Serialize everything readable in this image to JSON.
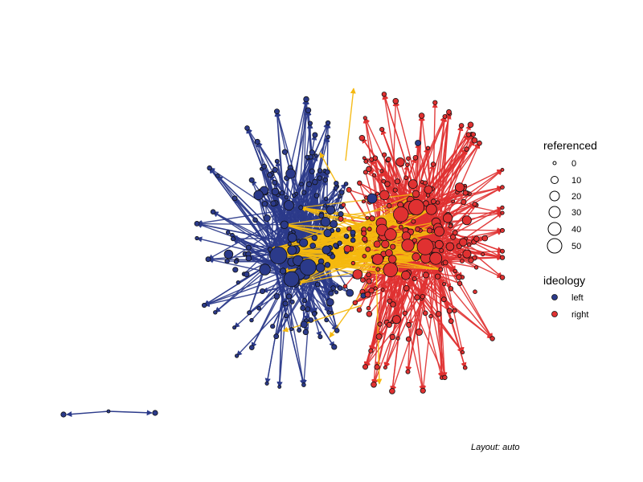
{
  "colors": {
    "left": "#2b3a8a",
    "right": "#e03131",
    "cross": "#f5b80f",
    "node_stroke": "#111111"
  },
  "legend": {
    "size_title": "referenced",
    "size_labels": [
      "0",
      "10",
      "20",
      "30",
      "40",
      "50"
    ],
    "color_title": "ideology",
    "color_labels": [
      "left",
      "right"
    ]
  },
  "layout_note": "Layout: auto"
}
